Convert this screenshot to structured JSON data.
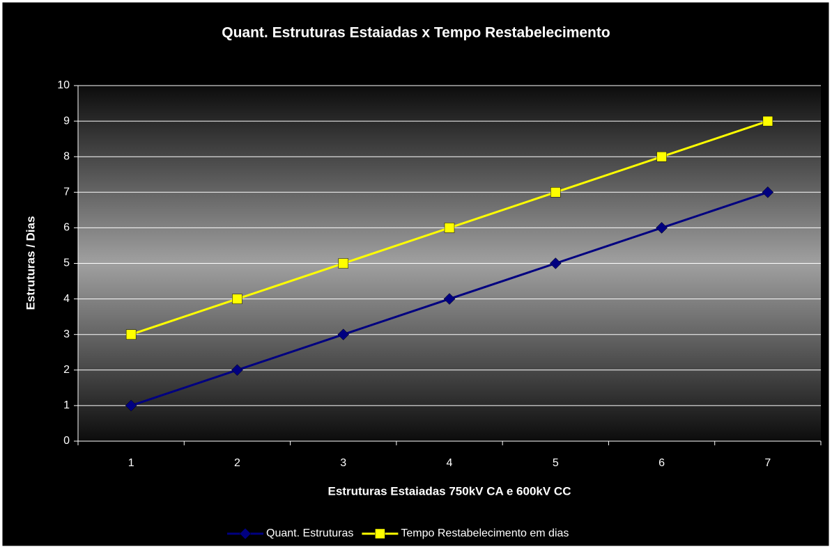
{
  "chart_data": {
    "type": "line",
    "title": "Quant. Estruturas Estaiadas x Tempo Restabelecimento",
    "x_label": "Estruturas Estaiadas 750kV CA e 600kV CC",
    "y_label": "Estruturas / Dias",
    "categories": [
      "1",
      "2",
      "3",
      "4",
      "5",
      "6",
      "7"
    ],
    "series": [
      {
        "name": "Quant. Estruturas",
        "color": "#000080",
        "marker": "diamond",
        "values": [
          1,
          2,
          3,
          4,
          5,
          6,
          7
        ]
      },
      {
        "name": "Tempo Restabelecimento em dias",
        "color": "#ffff00",
        "marker": "square",
        "values": [
          3,
          4,
          5,
          6,
          7,
          8,
          9
        ]
      }
    ],
    "ylim": [
      0,
      10
    ],
    "yticks": [
      0,
      1,
      2,
      3,
      4,
      5,
      6,
      7,
      8,
      9,
      10
    ],
    "grid": true,
    "legend": "bottom"
  }
}
